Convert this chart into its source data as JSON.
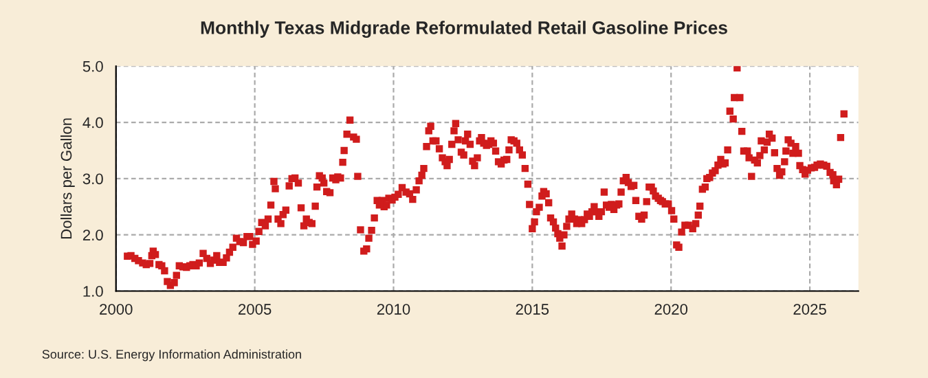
{
  "chart_data": {
    "type": "scatter",
    "title": "Monthly Texas Midgrade Reformulated Retail Gasoline Prices",
    "ylabel": "Dollars per Gallon",
    "annotations": [
      "Source: U.S. Energy Information Administration"
    ],
    "marker": "square",
    "grid": true,
    "legend": false,
    "xlim": [
      2000,
      2026.75
    ],
    "xticks": [
      2000,
      2005,
      2010,
      2015,
      2020,
      2025
    ],
    "ylim": [
      1,
      5
    ],
    "yticks": [
      {
        "value": 1,
        "label": "1.0"
      },
      {
        "value": 2,
        "label": "2.0"
      },
      {
        "value": 3,
        "label": "3.0"
      },
      {
        "value": 4,
        "label": "4.0"
      },
      {
        "value": 5,
        "label": "5.0"
      }
    ],
    "series": [
      {
        "color": "#d01c1c",
        "x": [
          2000.41,
          2000.54,
          2000.68,
          2000.81,
          2000.96,
          2001.09,
          2001.22,
          2001.29,
          2001.34,
          2001.42,
          2001.55,
          2001.65,
          2001.75,
          2001.85,
          2001.96,
          2002.1,
          2002.18,
          2002.28,
          2002.41,
          2002.54,
          2002.66,
          2002.77,
          2002.89,
          2003.0,
          2003.14,
          2003.27,
          2003.4,
          2003.53,
          2003.63,
          2003.73,
          2003.86,
          2003.98,
          2004.09,
          2004.21,
          2004.34,
          2004.46,
          2004.59,
          2004.72,
          2004.82,
          2004.92,
          2005.05,
          2005.15,
          2005.25,
          2005.38,
          2005.48,
          2005.58,
          2005.69,
          2005.74,
          2005.84,
          2005.94,
          2006.02,
          2006.12,
          2006.24,
          2006.34,
          2006.45,
          2006.57,
          2006.67,
          2006.77,
          2006.86,
          2006.96,
          2007.06,
          2007.18,
          2007.24,
          2007.33,
          2007.43,
          2007.49,
          2007.59,
          2007.71,
          2007.81,
          2007.92,
          2007.99,
          2008.09,
          2008.17,
          2008.22,
          2008.32,
          2008.43,
          2008.56,
          2008.66,
          2008.71,
          2008.81,
          2008.93,
          2009.03,
          2009.11,
          2009.21,
          2009.31,
          2009.41,
          2009.49,
          2009.59,
          2009.66,
          2009.75,
          2009.83,
          2009.95,
          2010.05,
          2010.17,
          2010.31,
          2010.45,
          2010.58,
          2010.69,
          2010.82,
          2010.92,
          2011.02,
          2011.09,
          2011.19,
          2011.27,
          2011.34,
          2011.42,
          2011.53,
          2011.65,
          2011.76,
          2011.86,
          2011.93,
          2012.01,
          2012.1,
          2012.18,
          2012.24,
          2012.33,
          2012.44,
          2012.53,
          2012.59,
          2012.67,
          2012.76,
          2012.85,
          2012.92,
          2013.02,
          2013.1,
          2013.17,
          2013.25,
          2013.35,
          2013.43,
          2013.51,
          2013.6,
          2013.68,
          2013.78,
          2013.88,
          2013.98,
          2014.08,
          2014.16,
          2014.24,
          2014.34,
          2014.44,
          2014.54,
          2014.64,
          2014.74,
          2014.84,
          2014.9,
          2015.0,
          2015.08,
          2015.15,
          2015.25,
          2015.35,
          2015.41,
          2015.5,
          2015.59,
          2015.66,
          2015.76,
          2015.84,
          2015.92,
          2015.99,
          2016.07,
          2016.14,
          2016.24,
          2016.32,
          2016.42,
          2016.52,
          2016.6,
          2016.7,
          2016.78,
          2016.88,
          2016.98,
          2017.06,
          2017.15,
          2017.23,
          2017.33,
          2017.4,
          2017.49,
          2017.59,
          2017.67,
          2017.77,
          2017.85,
          2017.94,
          2018.04,
          2018.12,
          2018.2,
          2018.28,
          2018.38,
          2018.46,
          2018.56,
          2018.66,
          2018.73,
          2018.84,
          2018.94,
          2019.03,
          2019.12,
          2019.21,
          2019.29,
          2019.36,
          2019.44,
          2019.54,
          2019.62,
          2019.69,
          2019.79,
          2019.9,
          2020.02,
          2020.1,
          2020.2,
          2020.28,
          2020.38,
          2020.5,
          2020.63,
          2020.78,
          2020.89,
          2020.98,
          2021.04,
          2021.13,
          2021.23,
          2021.29,
          2021.39,
          2021.49,
          2021.59,
          2021.69,
          2021.79,
          2021.87,
          2021.95,
          2022.04,
          2022.12,
          2022.24,
          2022.28,
          2022.38,
          2022.48,
          2022.55,
          2022.62,
          2022.75,
          2022.81,
          2022.9,
          2023.01,
          2023.11,
          2023.2,
          2023.25,
          2023.36,
          2023.46,
          2023.54,
          2023.64,
          2023.73,
          2023.82,
          2023.91,
          2023.99,
          2024.09,
          2024.14,
          2024.22,
          2024.32,
          2024.39,
          2024.49,
          2024.59,
          2024.64,
          2024.74,
          2024.83,
          2024.92,
          2025.05,
          2025.17,
          2025.26,
          2025.38,
          2025.5,
          2025.61,
          2025.73,
          2025.83,
          2025.86,
          2025.96,
          2026.04,
          2026.11,
          2026.23
        ],
        "values": [
          1.62,
          1.63,
          1.58,
          1.54,
          1.5,
          1.47,
          1.49,
          1.63,
          1.71,
          1.65,
          1.47,
          1.45,
          1.36,
          1.17,
          1.1,
          1.15,
          1.28,
          1.45,
          1.43,
          1.42,
          1.45,
          1.47,
          1.45,
          1.5,
          1.67,
          1.58,
          1.49,
          1.55,
          1.63,
          1.51,
          1.51,
          1.59,
          1.69,
          1.78,
          1.94,
          1.88,
          1.86,
          1.97,
          1.97,
          1.83,
          1.89,
          2.06,
          2.22,
          2.16,
          2.28,
          2.53,
          2.95,
          2.82,
          2.28,
          2.2,
          2.36,
          2.44,
          2.87,
          3.0,
          3.01,
          2.92,
          2.48,
          2.16,
          2.28,
          2.22,
          2.2,
          2.51,
          2.85,
          3.05,
          3.01,
          2.92,
          2.77,
          2.75,
          3.01,
          2.98,
          3.03,
          3.01,
          3.29,
          3.5,
          3.79,
          4.04,
          3.74,
          3.7,
          3.04,
          2.09,
          1.71,
          1.75,
          1.94,
          2.08,
          2.3,
          2.61,
          2.53,
          2.61,
          2.5,
          2.53,
          2.65,
          2.62,
          2.67,
          2.72,
          2.84,
          2.76,
          2.73,
          2.63,
          2.8,
          2.96,
          3.06,
          3.18,
          3.57,
          3.85,
          3.93,
          3.67,
          3.67,
          3.53,
          3.37,
          3.3,
          3.23,
          3.34,
          3.61,
          3.85,
          3.98,
          3.69,
          3.47,
          3.42,
          3.67,
          3.79,
          3.61,
          3.31,
          3.23,
          3.37,
          3.67,
          3.73,
          3.63,
          3.59,
          3.61,
          3.67,
          3.63,
          3.49,
          3.3,
          3.26,
          3.33,
          3.34,
          3.51,
          3.69,
          3.67,
          3.63,
          3.51,
          3.42,
          3.18,
          2.9,
          2.54,
          2.11,
          2.23,
          2.41,
          2.49,
          2.69,
          2.77,
          2.73,
          2.57,
          2.3,
          2.23,
          2.12,
          2.02,
          1.94,
          1.8,
          2.0,
          2.15,
          2.28,
          2.37,
          2.28,
          2.2,
          2.27,
          2.2,
          2.27,
          2.37,
          2.33,
          2.41,
          2.5,
          2.41,
          2.33,
          2.41,
          2.76,
          2.53,
          2.49,
          2.54,
          2.45,
          2.53,
          2.55,
          2.76,
          2.96,
          3.02,
          2.93,
          2.86,
          2.88,
          2.61,
          2.33,
          2.28,
          2.35,
          2.59,
          2.85,
          2.85,
          2.78,
          2.69,
          2.65,
          2.61,
          2.59,
          2.55,
          2.55,
          2.43,
          2.28,
          1.82,
          1.78,
          2.05,
          2.17,
          2.17,
          2.11,
          2.2,
          2.35,
          2.51,
          2.81,
          2.85,
          3.0,
          3.02,
          3.1,
          3.14,
          3.24,
          3.34,
          3.26,
          3.28,
          3.51,
          4.2,
          4.06,
          4.44,
          4.97,
          4.44,
          3.84,
          3.49,
          3.49,
          3.37,
          3.04,
          3.33,
          3.28,
          3.41,
          3.67,
          3.51,
          3.65,
          3.79,
          3.72,
          3.46,
          3.18,
          3.06,
          3.12,
          3.3,
          3.49,
          3.69,
          3.63,
          3.45,
          3.57,
          3.45,
          3.23,
          3.16,
          3.08,
          3.15,
          3.19,
          3.2,
          3.24,
          3.26,
          3.24,
          3.22,
          3.11,
          3.07,
          2.96,
          2.89,
          2.99,
          3.73,
          4.15
        ]
      }
    ]
  }
}
